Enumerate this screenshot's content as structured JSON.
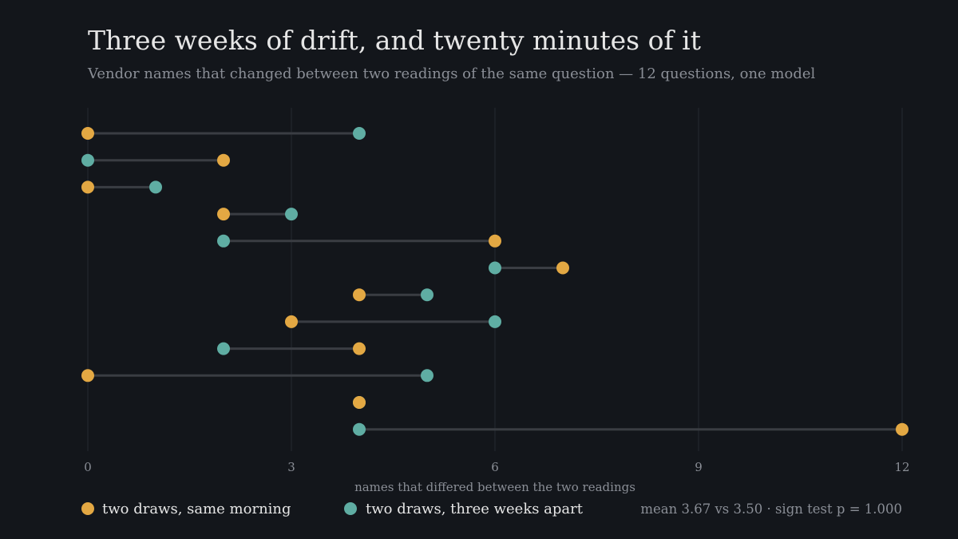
{
  "colors": {
    "background": "#13161b",
    "same_morning": "#e3a843",
    "three_weeks": "#5fada3",
    "connector": "#3a3d43",
    "grid": "#262a31",
    "title_text": "#e6e6e6",
    "muted_text": "#8a8e96"
  },
  "chart_data": {
    "type": "scatter",
    "style": "dumbbell",
    "title": "Three weeks of drift, and twenty minutes of it",
    "subtitle": "Vendor names that changed between two readings of the same question — 12 questions, one model",
    "xlabel": "names that differed between the two readings",
    "ylabel": "",
    "xlim": [
      0,
      12
    ],
    "xticks": [
      0,
      3,
      6,
      9,
      12
    ],
    "grid": "vertical",
    "legend_position": "bottom-left",
    "series": [
      {
        "name": "two draws, same morning",
        "color": "#e3a843",
        "values": [
          0,
          2,
          0,
          2,
          6,
          7,
          4,
          3,
          4,
          0,
          4,
          12
        ]
      },
      {
        "name": "two draws, three weeks apart",
        "color": "#5fada3",
        "values": [
          4,
          0,
          1,
          3,
          2,
          6,
          5,
          6,
          2,
          5,
          4,
          4
        ]
      }
    ],
    "annotation": "mean 3.67 vs 3.50 · sign test p = 1.000"
  }
}
